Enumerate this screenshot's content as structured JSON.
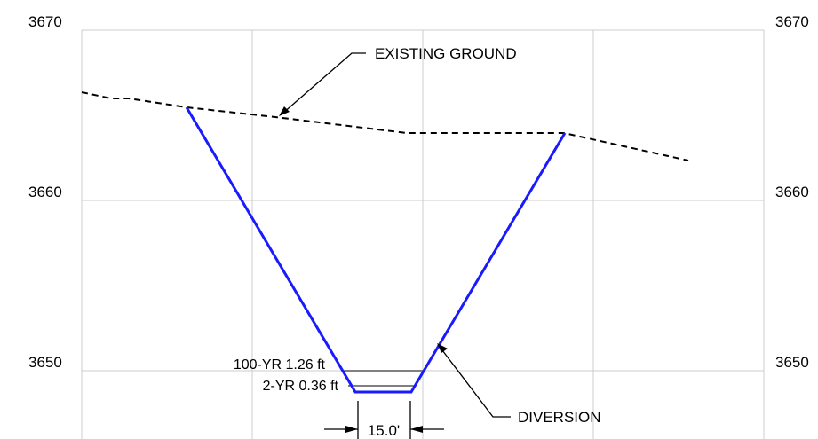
{
  "elevations": {
    "left": [
      "3670",
      "3660",
      "3650"
    ],
    "right": [
      "3670",
      "3660",
      "3650"
    ]
  },
  "callouts": {
    "existing_ground": "EXISTING GROUND",
    "diversion": "DIVERSION"
  },
  "water_levels": {
    "yr100": "100-YR 1.26 ft",
    "yr2": "2-YR 0.36 ft"
  },
  "dimension": {
    "bottom_width": "15.0'"
  },
  "colors": {
    "channel": "#1a1aff",
    "grid": "#cccccc",
    "ground": "#000000"
  }
}
